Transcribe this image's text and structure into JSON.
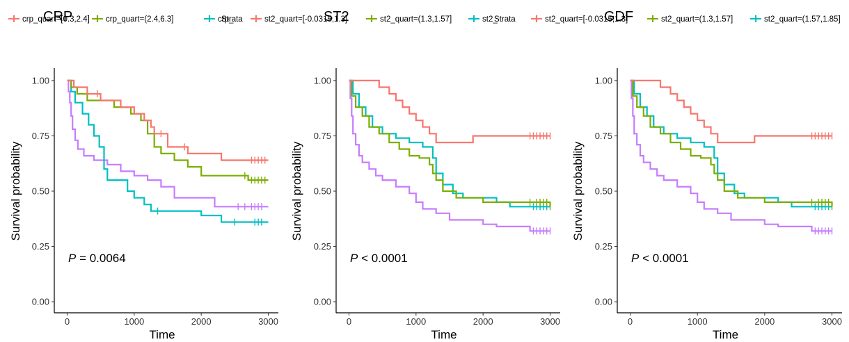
{
  "chart_data": [
    {
      "type": "line",
      "title": "CRP",
      "xlabel": "Time",
      "ylabel": "Survival probability",
      "xlim": [
        0,
        3000
      ],
      "ylim": [
        0,
        1
      ],
      "xticks": [
        "0",
        "1000",
        "2000",
        "3000"
      ],
      "yticks": [
        "0.00",
        "0.25",
        "0.50",
        "0.75",
        "1.00"
      ],
      "grid": false,
      "legend_position": "top",
      "legend": [
        {
          "label": "crp_quart=[0.3,2.4]",
          "color": "#f8766d"
        },
        {
          "label": "crp_quart=(2.4,6.3]",
          "color": "#7cae00"
        },
        {
          "label": "crp_",
          "color": "#00bfc4"
        },
        {
          "label": "Strata",
          "color": ""
        }
      ],
      "annotation": {
        "p_label": "P",
        "p_rest": " = 0.0064"
      },
      "series": [
        {
          "color": "#f8766d",
          "x": [
            0,
            100,
            300,
            500,
            800,
            1000,
            1150,
            1250,
            1300,
            1500,
            1800,
            2000,
            2300,
            3000
          ],
          "y": [
            1.0,
            0.97,
            0.94,
            0.91,
            0.88,
            0.85,
            0.82,
            0.79,
            0.76,
            0.7,
            0.67,
            0.67,
            0.64,
            0.64
          ],
          "censor_x": [
            450,
            1400,
            1750,
            2750,
            2800,
            2850,
            2900,
            2950
          ]
        },
        {
          "color": "#7cae00",
          "x": [
            0,
            60,
            150,
            300,
            700,
            950,
            1100,
            1200,
            1300,
            1400,
            1600,
            1800,
            2000,
            2700,
            3000
          ],
          "y": [
            1.0,
            0.97,
            0.94,
            0.91,
            0.88,
            0.85,
            0.82,
            0.76,
            0.7,
            0.67,
            0.64,
            0.61,
            0.57,
            0.55,
            0.55
          ],
          "censor_x": [
            2650,
            2750,
            2800,
            2850,
            2900,
            2950
          ]
        },
        {
          "color": "#00bfc4",
          "x": [
            0,
            60,
            120,
            230,
            320,
            400,
            480,
            550,
            600,
            800,
            900,
            1000,
            1150,
            1250,
            1300,
            1500,
            2000,
            2300,
            2500,
            3000
          ],
          "y": [
            1.0,
            0.95,
            0.9,
            0.85,
            0.8,
            0.75,
            0.7,
            0.6,
            0.55,
            0.55,
            0.5,
            0.47,
            0.44,
            0.41,
            0.41,
            0.41,
            0.39,
            0.36,
            0.36,
            0.36
          ],
          "censor_x": [
            1350,
            2500,
            2800,
            2850,
            2900
          ]
        },
        {
          "color": "#c77cff",
          "x": [
            0,
            20,
            40,
            60,
            80,
            120,
            160,
            250,
            400,
            600,
            800,
            1000,
            1200,
            1400,
            1600,
            2000,
            2200,
            3000
          ],
          "y": [
            1.0,
            0.95,
            0.9,
            0.84,
            0.78,
            0.73,
            0.69,
            0.66,
            0.64,
            0.62,
            0.59,
            0.57,
            0.55,
            0.52,
            0.47,
            0.47,
            0.43,
            0.43
          ],
          "censor_x": [
            2550,
            2650,
            2750,
            2800,
            2850,
            2900
          ]
        }
      ]
    },
    {
      "type": "line",
      "title": "ST2",
      "xlabel": "Time",
      "ylabel": "Survival probability",
      "xlim": [
        0,
        3000
      ],
      "ylim": [
        0,
        1
      ],
      "xticks": [
        "0",
        "1000",
        "2000",
        "3000"
      ],
      "yticks": [
        "0.00",
        "0.25",
        "0.50",
        "0.75",
        "1.00"
      ],
      "grid": false,
      "legend_position": "top",
      "legend": [
        {
          "label": "st2_quart=[-0.0315,1.3]",
          "color": "#f8766d"
        },
        {
          "label": "st2_quart=(1.3,1.57]",
          "color": "#7cae00"
        },
        {
          "label": "st2_",
          "color": "#00bfc4"
        },
        {
          "label": "Strata",
          "color": ""
        }
      ],
      "annotation": {
        "p_label": "P",
        "p_rest": " < 0.0001"
      },
      "series": [
        {
          "color": "#f8766d",
          "x": [
            0,
            300,
            450,
            600,
            700,
            800,
            900,
            1000,
            1100,
            1200,
            1300,
            1500,
            1700,
            1850,
            3000
          ],
          "y": [
            1.0,
            1.0,
            0.97,
            0.94,
            0.91,
            0.88,
            0.85,
            0.82,
            0.79,
            0.76,
            0.72,
            0.72,
            0.72,
            0.75,
            0.75
          ],
          "censor_x": [
            2700,
            2750,
            2800,
            2850,
            2900,
            2950,
            3000
          ]
        },
        {
          "color": "#7cae00",
          "x": [
            0,
            40,
            100,
            200,
            300,
            450,
            600,
            750,
            900,
            1050,
            1200,
            1250,
            1300,
            1400,
            1600,
            2000,
            3000
          ],
          "y": [
            1.0,
            0.93,
            0.88,
            0.84,
            0.79,
            0.76,
            0.72,
            0.69,
            0.66,
            0.65,
            0.62,
            0.58,
            0.55,
            0.5,
            0.47,
            0.45,
            0.43
          ],
          "censor_x": [
            2700,
            2800,
            2850,
            2900,
            2950,
            3000
          ]
        },
        {
          "color": "#00bfc4",
          "x": [
            0,
            60,
            150,
            250,
            350,
            500,
            700,
            900,
            1100,
            1250,
            1300,
            1400,
            1550,
            1700,
            2000,
            2200,
            2400,
            3000
          ],
          "y": [
            1.0,
            0.94,
            0.88,
            0.84,
            0.79,
            0.76,
            0.74,
            0.72,
            0.7,
            0.65,
            0.58,
            0.53,
            0.49,
            0.47,
            0.47,
            0.45,
            0.43,
            0.43
          ],
          "censor_x": [
            2750,
            2800,
            2850,
            2900,
            2950
          ]
        },
        {
          "color": "#c77cff",
          "x": [
            0,
            20,
            40,
            60,
            100,
            150,
            200,
            300,
            400,
            500,
            700,
            900,
            1000,
            1100,
            1300,
            1500,
            1800,
            2000,
            2200,
            2700,
            3000
          ],
          "y": [
            1.0,
            0.92,
            0.84,
            0.76,
            0.71,
            0.66,
            0.63,
            0.6,
            0.57,
            0.55,
            0.52,
            0.49,
            0.45,
            0.42,
            0.4,
            0.37,
            0.37,
            0.35,
            0.34,
            0.32,
            0.32
          ],
          "censor_x": [
            2750,
            2800,
            2850,
            2900,
            2950,
            3000
          ]
        }
      ]
    },
    {
      "type": "line",
      "title": "GDF",
      "xlabel": "Time",
      "ylabel": "Survival probability",
      "xlim": [
        0,
        3000
      ],
      "ylim": [
        0,
        1
      ],
      "xticks": [
        "0",
        "1000",
        "2000",
        "3000"
      ],
      "yticks": [
        "0.00",
        "0.25",
        "0.50",
        "0.75",
        "1.00"
      ],
      "grid": false,
      "legend_position": "top",
      "legend": [
        {
          "label": "st2_quart=[-0.0315,1.3]",
          "color": "#f8766d"
        },
        {
          "label": "st2_quart=(1.3,1.57]",
          "color": "#7cae00"
        },
        {
          "label": "st2_quart=(1.57,1.85]",
          "color": "#00bfc4"
        }
      ],
      "annotation": {
        "p_label": "P",
        "p_rest": " < 0.0001"
      },
      "series": [
        {
          "color": "#f8766d",
          "x": [
            0,
            300,
            450,
            600,
            700,
            800,
            900,
            1000,
            1100,
            1200,
            1300,
            1500,
            1700,
            1850,
            3000
          ],
          "y": [
            1.0,
            1.0,
            0.97,
            0.94,
            0.91,
            0.88,
            0.85,
            0.82,
            0.79,
            0.76,
            0.72,
            0.72,
            0.72,
            0.75,
            0.75
          ],
          "censor_x": [
            2700,
            2750,
            2800,
            2850,
            2900,
            2950,
            3000
          ]
        },
        {
          "color": "#7cae00",
          "x": [
            0,
            40,
            100,
            200,
            300,
            450,
            600,
            750,
            900,
            1050,
            1200,
            1250,
            1300,
            1400,
            1600,
            2000,
            3000
          ],
          "y": [
            1.0,
            0.93,
            0.88,
            0.84,
            0.79,
            0.76,
            0.72,
            0.69,
            0.66,
            0.65,
            0.62,
            0.58,
            0.55,
            0.5,
            0.47,
            0.45,
            0.43
          ],
          "censor_x": [
            2700,
            2800,
            2850,
            2900,
            2950,
            3000
          ]
        },
        {
          "color": "#00bfc4",
          "x": [
            0,
            60,
            150,
            250,
            350,
            500,
            700,
            900,
            1100,
            1250,
            1300,
            1400,
            1550,
            1700,
            2000,
            2200,
            2400,
            3000
          ],
          "y": [
            1.0,
            0.94,
            0.88,
            0.84,
            0.79,
            0.76,
            0.74,
            0.72,
            0.7,
            0.65,
            0.58,
            0.53,
            0.49,
            0.47,
            0.47,
            0.45,
            0.43,
            0.43
          ],
          "censor_x": [
            2750,
            2800,
            2850,
            2900,
            2950
          ]
        },
        {
          "color": "#c77cff",
          "x": [
            0,
            20,
            40,
            60,
            100,
            150,
            200,
            300,
            400,
            500,
            700,
            900,
            1000,
            1100,
            1300,
            1500,
            1800,
            2000,
            2200,
            2700,
            3000
          ],
          "y": [
            1.0,
            0.92,
            0.84,
            0.76,
            0.71,
            0.66,
            0.63,
            0.6,
            0.57,
            0.55,
            0.52,
            0.49,
            0.45,
            0.42,
            0.4,
            0.37,
            0.37,
            0.35,
            0.34,
            0.32,
            0.32
          ],
          "censor_x": [
            2750,
            2800,
            2850,
            2900,
            2950,
            3000
          ]
        }
      ]
    }
  ]
}
